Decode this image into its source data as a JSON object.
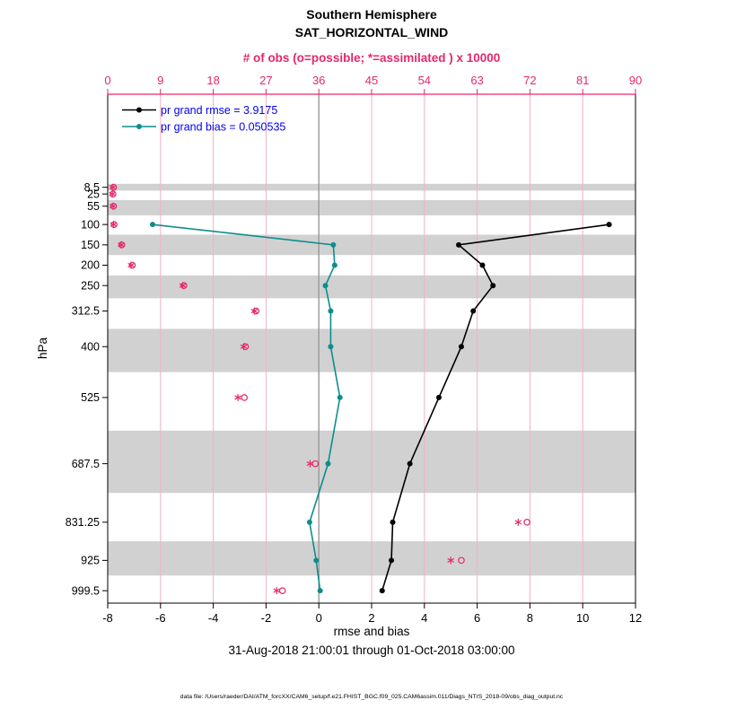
{
  "page": {
    "title_line1": "Southern Hemisphere",
    "title_line2": "SAT_HORIZONTAL_WIND",
    "subtitle": "31-Aug-2018 21:00:01 through 01-Oct-2018 03:00:00",
    "footer": "data file: /Users/raeder/DAI/ATM_forcXX/CAM6_setup/f.e21.FHIST_BGC.f09_025.CAM6assim.011/Diags_NTrS_2018-09/obs_diag_output.nc"
  },
  "colors": {
    "obs": "#e5286d",
    "grid": "#f4afc9",
    "band": "#d1d1d1",
    "rmse": "#000000",
    "bias": "#0d8d8d",
    "zero_line": "#9a9a9a",
    "legend_text": "#0000ee"
  },
  "chart_data": {
    "type": "line",
    "title": "Southern Hemisphere SAT_HORIZONTAL_WIND",
    "x_bottom": {
      "label": "rmse and bias",
      "lim": [
        -8,
        12
      ],
      "ticks": [
        -8,
        -6,
        -4,
        -2,
        0,
        2,
        4,
        6,
        8,
        10,
        12
      ]
    },
    "x_top": {
      "label": "# of obs (o=possible; *=assimilated ) x 10000",
      "lim": [
        0,
        90
      ],
      "ticks": [
        0,
        9,
        18,
        27,
        36,
        45,
        54,
        63,
        72,
        81,
        90
      ],
      "unit_scale": 10000
    },
    "y": {
      "label": "hPa",
      "levels": [
        8.5,
        25,
        55,
        100,
        150,
        200,
        250,
        312.5,
        400,
        525,
        687.5,
        831.25,
        925,
        999.5
      ],
      "tick_labels": [
        "8.5",
        "25",
        "55",
        "100",
        "150",
        "200",
        "250",
        "312.5",
        "400",
        "525",
        "687.5",
        "831.25",
        "925",
        "999.5"
      ],
      "lim_top": -220,
      "lim_bottom": 1030,
      "shaded_level_indices": [
        0,
        2,
        4,
        6,
        8,
        10,
        12
      ]
    },
    "legend": [
      {
        "name": "pr grand rmse = 3.9175",
        "color_key": "rmse"
      },
      {
        "name": "pr grand bias = 0.050535",
        "color_key": "bias"
      }
    ],
    "series": [
      {
        "name": "rmse",
        "axis": "bottom",
        "marker": "dot",
        "color_key": "rmse",
        "values": [
          null,
          null,
          null,
          11.0,
          5.3,
          6.2,
          6.6,
          5.85,
          5.4,
          4.55,
          3.45,
          2.8,
          2.75,
          2.4
        ]
      },
      {
        "name": "bias",
        "axis": "bottom",
        "marker": "dot",
        "color_key": "bias",
        "values": [
          null,
          null,
          null,
          -6.3,
          0.55,
          0.6,
          0.25,
          0.45,
          0.45,
          0.8,
          0.35,
          -0.35,
          -0.1,
          0.05
        ]
      },
      {
        "name": "possible-obs-x10000",
        "axis": "top",
        "marker": "circle",
        "color_key": "obs",
        "values": [
          1.0,
          0.9,
          1.0,
          1.1,
          2.4,
          4.2,
          13.0,
          25.3,
          23.5,
          23.3,
          35.4,
          71.5,
          60.3,
          29.8
        ]
      },
      {
        "name": "assimilated-obs-x10000",
        "axis": "top",
        "marker": "asterisk",
        "color_key": "obs",
        "values": [
          0.9,
          0.8,
          0.9,
          1.0,
          2.3,
          4.0,
          12.8,
          25.0,
          23.2,
          22.2,
          34.5,
          70.0,
          58.5,
          28.8
        ]
      }
    ]
  }
}
